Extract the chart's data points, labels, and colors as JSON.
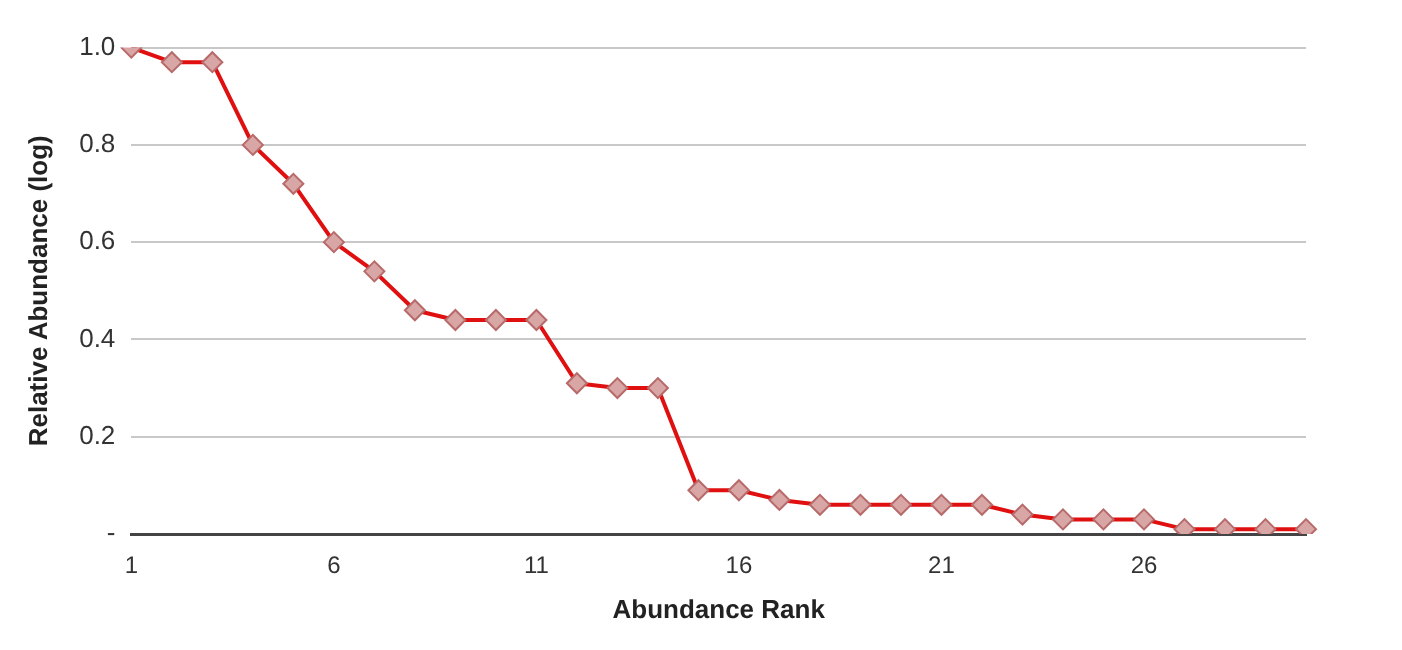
{
  "chart_data": {
    "type": "line",
    "xlabel": "Abundance Rank",
    "ylabel": "Relative Abundance (log)",
    "categories": [
      "1",
      null,
      null,
      null,
      null,
      "6",
      null,
      null,
      null,
      null,
      "11",
      null,
      null,
      null,
      null,
      "16",
      null,
      null,
      null,
      null,
      "21",
      null,
      null,
      null,
      null,
      "26",
      null,
      null,
      null,
      null
    ],
    "series": [
      {
        "color": "#e01010",
        "values": [
          1.0,
          0.97,
          0.97,
          0.8,
          0.72,
          0.6,
          0.54,
          0.46,
          0.44,
          0.44,
          0.44,
          0.31,
          0.3,
          0.3,
          0.09,
          0.09,
          0.07,
          0.06,
          0.06,
          0.06,
          0.06,
          0.06,
          0.04,
          0.03,
          0.03,
          0.03,
          0.01,
          0.01,
          0.01,
          0.01
        ]
      }
    ],
    "ylim": [
      0,
      1.0
    ],
    "yticks": [
      {
        "value": 0,
        "label": "-"
      },
      0.2,
      0.4,
      0.6,
      0.8,
      {
        "value": 1.0,
        "label": "1.0"
      }
    ],
    "grid": "y",
    "legend": false,
    "marker": "diamond",
    "line_style": "solid"
  }
}
